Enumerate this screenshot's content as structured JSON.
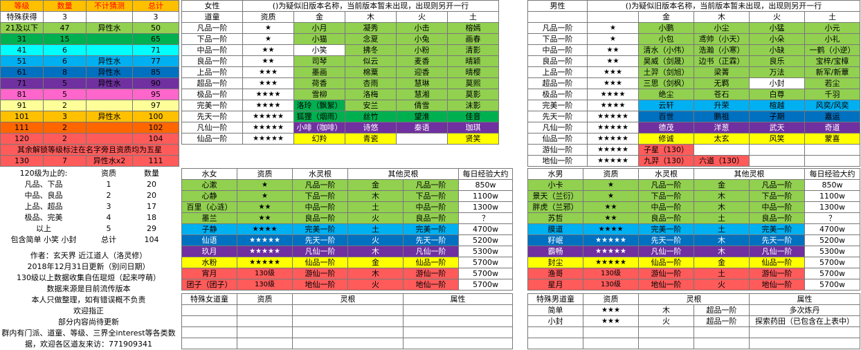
{
  "colors": {
    "red": "#ff0000",
    "orange": "#ffc000",
    "yellow": "#ffff00",
    "lgreen": "#92d050",
    "green": "#00b050",
    "cyan": "#00ffff",
    "lblue": "#00b0f0",
    "blue": "#0070c0",
    "purple": "#7030a0",
    "pink": "#ff66cc",
    "lyellow": "#ffff99",
    "gold": "#ffc000",
    "ored": "#ff6600",
    "sred": "#ff5b5b",
    "gray": "#d9d9d9",
    "white": "#ffffff"
  },
  "levels": {
    "header": [
      "等级",
      "数量",
      "不计猜测",
      "总计"
    ],
    "rows": [
      [
        "特殊获得",
        "3",
        "",
        "3"
      ],
      [
        "21及以下",
        "47",
        "异性水",
        "50"
      ],
      [
        "31",
        "15",
        "",
        "65"
      ],
      [
        "41",
        "6",
        "",
        "71"
      ],
      [
        "51",
        "6",
        "异性水",
        "77"
      ],
      [
        "61",
        "8",
        "异性水",
        "85"
      ],
      [
        "71",
        "5",
        "异性水",
        "90"
      ],
      [
        "81",
        "5",
        "",
        "95"
      ],
      [
        "91",
        "2",
        "",
        "97"
      ],
      [
        "101",
        "3",
        "异性水",
        "100"
      ],
      [
        "111",
        "2",
        "",
        "102"
      ],
      [
        "120",
        "2",
        "",
        "104"
      ]
    ],
    "note": "其余解锁等级标注在名字旁且资质均为五星",
    "last": [
      "130",
      "7",
      "异性水x2",
      "111"
    ]
  },
  "summary": {
    "header": [
      "120级为止的:",
      "资质",
      "数量"
    ],
    "rows": [
      [
        "凡品、下品",
        "1",
        "20"
      ],
      [
        "中品、良品",
        "2",
        "20"
      ],
      [
        "上品、超品",
        "3",
        "17"
      ],
      [
        "极品、完美",
        "4",
        "18"
      ],
      [
        "以上",
        "5",
        "29"
      ],
      [
        "包含简单 小笑 小封",
        "总计",
        "104"
      ]
    ]
  },
  "author": [
    "作者：玄天界 近江道人（洛灵修）",
    "2018年12月31日更新（别问日期）",
    "130级以上数据收集自伍琨烜（起来哼萌）",
    "数据来源是目前流传版本",
    "本人只做整理，如有错误概不负责",
    "欢迎指正",
    "部分内容尚待更新",
    "群内有门派、道童、等级、三界全interest等各类数",
    "据，欢迎各区道友来访：771909341"
  ],
  "female": {
    "title": "女性",
    "note": "()为疑似旧版本名称，当前版本暂未出现，出现则另开一行",
    "cols": [
      "道童",
      "资质",
      "金",
      "木",
      "火",
      "土"
    ],
    "rows": [
      [
        "凡品一阶",
        "★",
        "小月",
        "凝秀",
        "小击",
        "榕嫣"
      ],
      [
        "下品一阶",
        "★",
        "小猫",
        "念夏",
        "小兔",
        "画春"
      ],
      [
        "中品一阶",
        "★★",
        "小笑",
        "拂冬",
        "小粉",
        "清影"
      ],
      [
        "良品一阶",
        "★★",
        "司琴",
        "似云",
        "麦香",
        "晴颖"
      ],
      [
        "上品一阶",
        "★★★",
        "墨画",
        "棉粟",
        "迎香",
        "晴樱"
      ],
      [
        "超品一阶",
        "★★★",
        "荷香",
        "杏雨",
        "慧琳",
        "莫熙"
      ],
      [
        "极品一阶",
        "★★★★",
        "雪柳",
        "洛梅",
        "慧湘",
        "莫影"
      ],
      [
        "完美一阶",
        "★★★★",
        "洛玲（飘絮）",
        "安兰",
        "倩雪",
        "沫影"
      ],
      [
        "先天一阶",
        "★★★★★",
        "狐狸（烟雨）",
        "丝竹",
        "望淮",
        "佳音"
      ],
      [
        "凡仙一阶",
        "★★★★★",
        "小啡（咖啡）",
        "诗悠",
        "秦语",
        "珈琪"
      ],
      [
        "仙品一阶",
        "★★★★★",
        "幻羚",
        "青瓷",
        "",
        "贤笑"
      ]
    ]
  },
  "male": {
    "title": "男性",
    "note": "()为疑似旧版本名称，当前版本暂未出现，出现则另开一行",
    "cols": [
      "",
      "",
      "金",
      "木",
      "火",
      "土"
    ],
    "rows": [
      [
        "凡品一阶",
        "★",
        "小鹏",
        "小尘",
        "小猛",
        "小元"
      ],
      [
        "下品一阶",
        "★",
        "小包",
        "鸢帅（小天）",
        "小朵",
        "小礼"
      ],
      [
        "中品一阶",
        "★★",
        "清水（小伟）",
        "浩瀚（小寒）",
        "小缺",
        "一鹤（小逆）"
      ],
      [
        "良品一阶",
        "★★",
        "昊威（剑晟）",
        "边书（正霖）",
        "良乐",
        "宝梓/宝樟"
      ],
      [
        "上品一阶",
        "★★★",
        "土羿（剑旭）",
        "梁菁",
        "万法",
        "新军/新蕈"
      ],
      [
        "超品一阶",
        "★★★",
        "三思（剑枫）",
        "无羁",
        "小封",
        "若尘"
      ],
      [
        "极品一阶",
        "★★★★",
        "绝尘",
        "苍石",
        "白尊",
        "千羽"
      ],
      [
        "完美一阶",
        "★★★★",
        "云轩",
        "升荣",
        "楦越",
        "风奕/风奕"
      ],
      [
        "先天一阶",
        "★★★★★",
        "百世",
        "鹏祖",
        "子期",
        "嘉运"
      ],
      [
        "凡仙一阶",
        "★★★★★",
        "德茂",
        "洋葱",
        "武天",
        "奇道"
      ],
      [
        "仙品一阶",
        "★★★★★",
        "修诚",
        "太玄",
        "风笑",
        "蒙喜"
      ],
      [
        "游仙一阶",
        "★★★★★",
        "子星（130）",
        "",
        "",
        ""
      ],
      [
        "地仙一阶",
        "★★★★★",
        "九羿（130）",
        "六道（130）",
        "",
        ""
      ]
    ]
  },
  "water_f": {
    "cols": [
      "水女",
      "资质",
      "水灵根",
      "其他灵根",
      "",
      "每日经验大约"
    ],
    "rows": [
      [
        "心漱",
        "★",
        "凡品一阶",
        "金",
        "凡品一阶",
        "850w"
      ],
      [
        "心静",
        "★",
        "下品一阶",
        "木",
        "下品一阶",
        "1100w"
      ],
      [
        "百里（心涟）",
        "★★",
        "中品一阶",
        "土",
        "中品一阶",
        "1300w"
      ],
      [
        "墨兰",
        "★★",
        "良品一阶",
        "火",
        "良品一阶",
        "？"
      ],
      [
        "子静",
        "★★★★",
        "完美一阶",
        "土",
        "完美一阶",
        "4700w"
      ],
      [
        "仙语",
        "★★★★★",
        "先天一阶",
        "火",
        "先天一阶",
        "5200w"
      ],
      [
        "玖月",
        "★★★★★",
        "凡仙一阶",
        "木",
        "凡仙一阶",
        "5300w"
      ],
      [
        "水粉",
        "★★★★★",
        "仙品一阶",
        "金",
        "仙品一阶",
        "5700w"
      ],
      [
        "宵月",
        "130级",
        "游仙一阶",
        "木",
        "游仙一阶",
        "5700w"
      ],
      [
        "团子（团子）",
        "130级",
        "地仙一阶",
        "火",
        "地仙一阶",
        "5700w"
      ]
    ]
  },
  "water_m": {
    "cols": [
      "水男",
      "资质",
      "水灵根",
      "其他灵根",
      "",
      "每日经验大约"
    ],
    "rows": [
      [
        "小卡",
        "★",
        "凡品一阶",
        "金",
        "凡品一阶",
        "850w"
      ],
      [
        "景天（兰衍）",
        "★",
        "下品一阶",
        "木",
        "下品一阶",
        "1100w"
      ],
      [
        "胖虎（兰邪）",
        "★★",
        "中品一阶",
        "木",
        "中品一阶",
        "1300w"
      ],
      [
        "苏哲",
        "★★",
        "良品一阶",
        "土",
        "良品一阶",
        "？"
      ],
      [
        "膜道",
        "★★★★",
        "完美一阶",
        "土",
        "完美一阶",
        "4700w"
      ],
      [
        "籽岷",
        "★★★★★",
        "先天一阶",
        "木",
        "先天一阶",
        "5200w"
      ],
      [
        "霸畅",
        "★★★★★",
        "凡仙一阶",
        "木",
        "凡仙一阶",
        "5300w"
      ],
      [
        "封尘",
        "★★★★★",
        "仙品一阶",
        "金",
        "仙品一阶",
        "5700w"
      ],
      [
        "渔哥",
        "130级",
        "游仙一阶",
        "土",
        "游仙一阶",
        "5700w"
      ],
      [
        "星月",
        "130级",
        "地仙一阶",
        "火",
        "地仙一阶",
        "5700w"
      ]
    ]
  },
  "special_f": {
    "cols": [
      "特殊女道童",
      "资质",
      "灵根",
      "属性"
    ]
  },
  "special_m": {
    "cols": [
      "特殊男道童",
      "资质",
      "灵根",
      "",
      "属性"
    ],
    "rows": [
      [
        "简单",
        "★★★",
        "木",
        "超品一阶",
        "多次炼丹"
      ],
      [
        "小封",
        "★★★",
        "火",
        "超品一阶",
        "探索药田（已包含在上表中）"
      ]
    ]
  }
}
